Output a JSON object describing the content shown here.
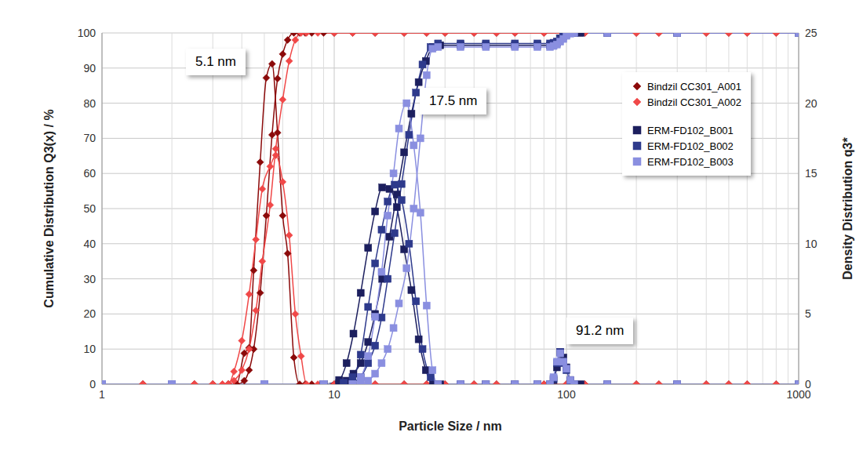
{
  "chart_data": {
    "type": "line",
    "xlabel": "Particle Size / nm",
    "ylabel": "Cumulative Distribution Q3(x) / %",
    "y2label": "Density Distribution q3*",
    "annotations": [
      "5.1 nm",
      "17.5 nm",
      "91.2 nm"
    ],
    "log": "x",
    "grid": true,
    "legend": "upper right",
    "xlim": [
      1,
      1000
    ],
    "xticks": [
      1,
      10,
      100,
      1000
    ],
    "ylim": [
      0,
      100
    ],
    "yticks": [
      0,
      10,
      20,
      30,
      40,
      50,
      60,
      70,
      80,
      90,
      100
    ],
    "y2lim": [
      0,
      25
    ],
    "y2ticks": [
      0,
      5,
      10,
      15,
      20,
      25
    ],
    "series": [
      {
        "name": "Bindzil CC301_A001",
        "color": "#8b0a0a",
        "marker": "diamond",
        "x": [
          1,
          1.5,
          2,
          2.5,
          3,
          3.5,
          3.8,
          4.1,
          4.3,
          4.5,
          4.8,
          5.1,
          5.4,
          5.7,
          6.0,
          6.3,
          6.7,
          7.1,
          7.5,
          8,
          9,
          10,
          12,
          15,
          20,
          25,
          30,
          40,
          50,
          60,
          80,
          100,
          120,
          150,
          200,
          250,
          300,
          400,
          500,
          600,
          800,
          1000
        ],
        "values": [
          0,
          0,
          0,
          0,
          0,
          0,
          0,
          1,
          4,
          10,
          26,
          48,
          71,
          87,
          94,
          98,
          100,
          100,
          100,
          100,
          100,
          100,
          100,
          100,
          100,
          100,
          100,
          100,
          100,
          100,
          100,
          100,
          100,
          100,
          100,
          100,
          100,
          100,
          100,
          100,
          100,
          100
        ],
        "density": [
          0,
          0,
          0,
          0,
          0,
          0,
          0,
          2.2,
          2.6,
          8.1,
          15.8,
          21.8,
          22.8,
          17.9,
          12,
          9.3,
          1.9,
          0,
          0,
          0,
          0,
          0,
          0,
          0,
          0,
          0,
          0,
          0,
          0,
          0,
          0,
          0,
          0,
          0,
          0,
          0,
          0,
          0,
          0,
          0,
          0,
          0
        ]
      },
      {
        "name": "Bindzil CC301_A002",
        "color": "#f04848",
        "marker": "diamond",
        "x": [
          1,
          1.5,
          2,
          2.5,
          3,
          3.3,
          3.5,
          3.7,
          4.0,
          4.3,
          4.6,
          4.9,
          5.3,
          5.6,
          6.0,
          6.4,
          6.8,
          7.2,
          7.6,
          8.5,
          10,
          12,
          15,
          20,
          25,
          30,
          40,
          50,
          60,
          80,
          100,
          120,
          150,
          200,
          250,
          300,
          400,
          500,
          600,
          800,
          1000
        ],
        "values": [
          0,
          0,
          0,
          0,
          0,
          0,
          0,
          1,
          4,
          10,
          21,
          35,
          51,
          67,
          81,
          92,
          98,
          100,
          100,
          100,
          100,
          100,
          100,
          100,
          100,
          100,
          100,
          100,
          100,
          100,
          100,
          100,
          100,
          100,
          100,
          100,
          100,
          100,
          100,
          100,
          100
        ],
        "density": [
          0,
          0,
          0,
          0,
          0,
          0,
          0,
          0.9,
          3.1,
          6.4,
          10.3,
          13.9,
          15.5,
          16.3,
          14.4,
          10.6,
          5,
          2,
          0,
          0,
          0,
          0,
          0,
          0,
          0,
          0,
          0,
          0,
          0,
          0,
          0,
          0,
          0,
          0,
          0,
          0,
          0,
          0,
          0,
          0,
          0
        ]
      },
      {
        "name": "ERM-FD102_B001",
        "color": "#1c1f5e",
        "marker": "square",
        "x": [
          1,
          2,
          5,
          9,
          10.5,
          11.3,
          12.1,
          13.0,
          14.0,
          15.0,
          16.1,
          17.3,
          18.6,
          20.0,
          21.5,
          23.1,
          24.8,
          26.6,
          28.6,
          35,
          45,
          60,
          75,
          85,
          88,
          91,
          94,
          97,
          100,
          104,
          108,
          115,
          150,
          300,
          1000
        ],
        "values": [
          0,
          0,
          0,
          0,
          0.3,
          1,
          3,
          6,
          12,
          20,
          30,
          42,
          54,
          66,
          77,
          86,
          92,
          96,
          96.5,
          96.5,
          96.5,
          96.5,
          96.5,
          96.5,
          96.7,
          97.2,
          98.5,
          99.4,
          99.8,
          100,
          100,
          100,
          100,
          100,
          100
        ],
        "density": [
          0,
          0,
          0,
          0,
          0.3,
          1.5,
          3.6,
          6.5,
          9.7,
          12.3,
          14.0,
          13.9,
          12.6,
          9.6,
          6.7,
          3.2,
          1.0,
          0,
          0,
          0,
          0,
          0,
          0,
          0,
          0.3,
          1.2,
          2.3,
          1.9,
          1.2,
          0.3,
          0,
          0,
          0,
          0,
          0
        ]
      },
      {
        "name": "ERM-FD102_B002",
        "color": "#2e3a8c",
        "marker": "square",
        "x": [
          1,
          2,
          5,
          9,
          11,
          12,
          13,
          14,
          15,
          16,
          17,
          18.2,
          19.5,
          21,
          22.5,
          24,
          26,
          28,
          35,
          45,
          60,
          75,
          85,
          88,
          91,
          94,
          97,
          100,
          104,
          108,
          150,
          300,
          1000
        ],
        "values": [
          0,
          0,
          0,
          0,
          0.1,
          0.5,
          2,
          6,
          11,
          19,
          30,
          43,
          57,
          71,
          83,
          91,
          96,
          97,
          97,
          97,
          97,
          97,
          97,
          97.2,
          97.6,
          98.3,
          99,
          99.6,
          100,
          100,
          100,
          100,
          100
        ],
        "density": [
          0,
          0,
          0,
          0,
          0.1,
          0.5,
          2.1,
          5.5,
          8.6,
          11,
          13,
          14.2,
          13.1,
          10,
          5.9,
          2.5,
          0.5,
          0,
          0,
          0,
          0,
          0,
          0,
          0.4,
          1.5,
          2.3,
          1.5,
          1.0,
          0.2,
          0,
          0,
          0,
          0
        ]
      },
      {
        "name": "ERM-FD102_B003",
        "color": "#8a8fe0",
        "marker": "square",
        "x": [
          1,
          2,
          5,
          9,
          12,
          13,
          14,
          15,
          16,
          17,
          18,
          19,
          20.5,
          22,
          23.5,
          25,
          26.5,
          28,
          35,
          45,
          60,
          75,
          85,
          88,
          91,
          94,
          97,
          100,
          104,
          108,
          150,
          300,
          1000
        ],
        "values": [
          0,
          0,
          0,
          0,
          0,
          0.3,
          1,
          3,
          6,
          10,
          16,
          23,
          33,
          50,
          70,
          88,
          95.5,
          96,
          96,
          96,
          96,
          96,
          96,
          96.3,
          96.7,
          97.5,
          98.3,
          99.2,
          99.8,
          100,
          100,
          100,
          100
        ],
        "density": [
          0,
          0,
          0,
          0,
          0,
          0.5,
          2,
          4.8,
          8,
          12,
          15,
          18.2,
          20,
          17,
          12.2,
          5.6,
          1,
          0,
          0,
          0,
          0,
          0,
          0,
          0.5,
          1.6,
          2.2,
          1.6,
          1.1,
          0.3,
          0,
          0,
          0,
          0
        ]
      }
    ]
  }
}
